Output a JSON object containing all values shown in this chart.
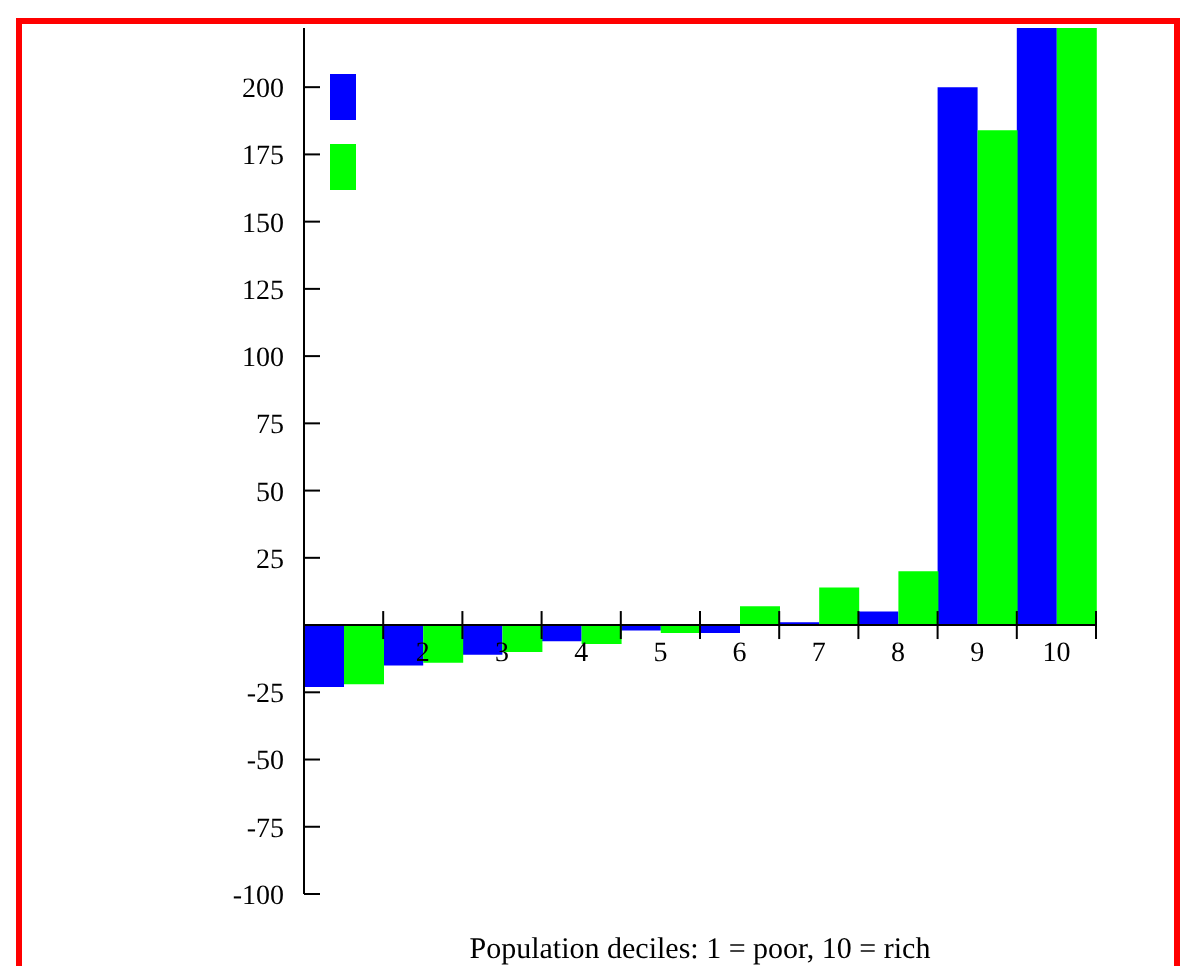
{
  "chart_data": {
    "type": "bar",
    "xlabel": "Population deciles: 1 = poor, 10 = rich",
    "categories": [
      null,
      "2",
      "3",
      "4",
      "5",
      "6",
      "7",
      "8",
      "9",
      "10"
    ],
    "series": [
      {
        "color": "#0000ff",
        "values": [
          -23,
          -15,
          -11,
          -6,
          -2,
          -3,
          1,
          5,
          200,
          222
        ]
      },
      {
        "color": "#00ff00",
        "values": [
          -22,
          -14,
          -10,
          -7,
          -3,
          7,
          14,
          20,
          184,
          222
        ]
      }
    ],
    "ylim": [
      -100,
      222
    ],
    "yticks": [
      -100,
      -75,
      -50,
      -25,
      {
        "value": 0,
        "label": null
      },
      25,
      50,
      75,
      100,
      125,
      150,
      175,
      200
    ],
    "grid": false
  }
}
